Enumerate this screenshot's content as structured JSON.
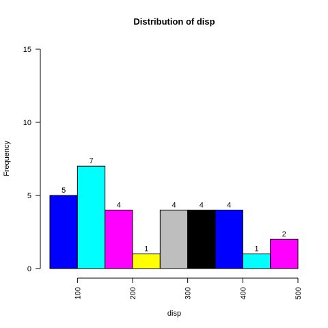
{
  "chart_data": {
    "type": "bar",
    "title": "Distribution of disp",
    "xlabel": "disp",
    "ylabel": "Frequency",
    "xlim": [
      50,
      500
    ],
    "ylim": [
      0,
      15
    ],
    "x_ticks": [
      100,
      200,
      300,
      400,
      500
    ],
    "y_ticks": [
      0,
      5,
      10,
      15
    ],
    "grid": false,
    "bins": [
      {
        "start": 50,
        "end": 100,
        "value": 5,
        "color": "#0000FF"
      },
      {
        "start": 100,
        "end": 150,
        "value": 7,
        "color": "#00FFFF"
      },
      {
        "start": 150,
        "end": 200,
        "value": 4,
        "color": "#FF00FF"
      },
      {
        "start": 200,
        "end": 250,
        "value": 1,
        "color": "#FFFF00"
      },
      {
        "start": 250,
        "end": 300,
        "value": 4,
        "color": "#BEBEBE"
      },
      {
        "start": 300,
        "end": 350,
        "value": 4,
        "color": "#000000"
      },
      {
        "start": 350,
        "end": 400,
        "value": 4,
        "color": "#0000FF"
      },
      {
        "start": 400,
        "end": 450,
        "value": 1,
        "color": "#00FFFF"
      },
      {
        "start": 450,
        "end": 500,
        "value": 2,
        "color": "#FF00FF"
      }
    ]
  }
}
